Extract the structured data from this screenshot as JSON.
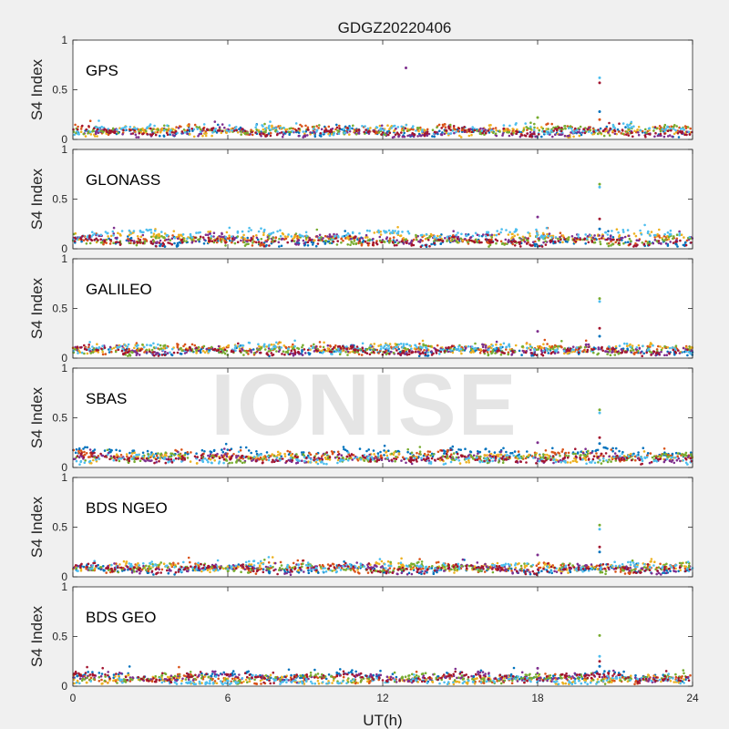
{
  "title": "GDGZ20220406",
  "watermark": "IONISE",
  "colors": {
    "palette": [
      "#0072BD",
      "#D95319",
      "#EDB120",
      "#7E2F8E",
      "#77AC30",
      "#4DBEEE",
      "#A2142F"
    ],
    "axes_bg": "#ffffff",
    "figure_bg": "#f0f0f0"
  },
  "chart_data": {
    "type": "scatter",
    "xlabel": "UT(h)",
    "xlim": [
      0,
      24
    ],
    "xticks": [
      0,
      6,
      12,
      18,
      24
    ],
    "grid": false,
    "panels": [
      {
        "label": "GPS",
        "ylabel": "S4 Index",
        "ylim": [
          0,
          1
        ],
        "yticks": [
          0,
          0.5,
          1
        ],
        "baseline": 0.08,
        "series_baselines": [
          0.07,
          0.1,
          0.08,
          0.06,
          0.09,
          0.1,
          0.08
        ],
        "spikes": [
          {
            "x": 12.9,
            "y": 0.72
          },
          {
            "x": 18.0,
            "y": 0.22
          },
          {
            "x": 20.4,
            "y": 0.62
          },
          {
            "x": 20.4,
            "y": 0.57
          },
          {
            "x": 20.4,
            "y": 0.28
          },
          {
            "x": 20.4,
            "y": 0.2
          }
        ]
      },
      {
        "label": "GLONASS",
        "ylabel": "S4 Index",
        "ylim": [
          0,
          1
        ],
        "yticks": [
          0,
          0.5,
          1
        ],
        "baseline": 0.08,
        "series_baselines": [
          0.07,
          0.09,
          0.12,
          0.1,
          0.08,
          0.15,
          0.07
        ],
        "spikes": [
          {
            "x": 18.0,
            "y": 0.32
          },
          {
            "x": 20.4,
            "y": 0.65
          },
          {
            "x": 20.4,
            "y": 0.62
          },
          {
            "x": 20.4,
            "y": 0.3
          },
          {
            "x": 20.4,
            "y": 0.2
          }
        ]
      },
      {
        "label": "GALILEO",
        "ylabel": "S4 Index",
        "ylim": [
          0,
          1
        ],
        "yticks": [
          0,
          0.5,
          1
        ],
        "baseline": 0.08,
        "series_baselines": [
          0.07,
          0.09,
          0.1,
          0.08,
          0.08,
          0.1,
          0.07
        ],
        "spikes": [
          {
            "x": 18.0,
            "y": 0.27
          },
          {
            "x": 20.4,
            "y": 0.6
          },
          {
            "x": 20.4,
            "y": 0.57
          },
          {
            "x": 20.4,
            "y": 0.3
          },
          {
            "x": 20.4,
            "y": 0.22
          }
        ]
      },
      {
        "label": "SBAS",
        "ylabel": "S4 Index",
        "ylim": [
          0,
          1
        ],
        "yticks": [
          0,
          0.5,
          1
        ],
        "baseline": 0.12,
        "series_baselines": [
          0.15,
          0.12,
          0.1,
          0.09,
          0.1,
          0.08,
          0.09
        ],
        "spikes": [
          {
            "x": 18.0,
            "y": 0.25
          },
          {
            "x": 20.4,
            "y": 0.58
          },
          {
            "x": 20.4,
            "y": 0.55
          },
          {
            "x": 20.4,
            "y": 0.3
          },
          {
            "x": 20.4,
            "y": 0.24
          }
        ]
      },
      {
        "label": "BDS NGEO",
        "ylabel": "S4 Index",
        "ylim": [
          0,
          1
        ],
        "yticks": [
          0,
          0.5,
          1
        ],
        "baseline": 0.08,
        "series_baselines": [
          0.07,
          0.09,
          0.1,
          0.08,
          0.09,
          0.1,
          0.08
        ],
        "spikes": [
          {
            "x": 18.0,
            "y": 0.22
          },
          {
            "x": 20.4,
            "y": 0.52
          },
          {
            "x": 20.4,
            "y": 0.48
          },
          {
            "x": 20.4,
            "y": 0.3
          },
          {
            "x": 20.4,
            "y": 0.25
          }
        ]
      },
      {
        "label": "BDS GEO",
        "ylabel": "S4 Index",
        "ylim": [
          0,
          1
        ],
        "yticks": [
          0,
          0.5,
          1
        ],
        "baseline": 0.08,
        "series_baselines": [
          0.1,
          0.07,
          0.06,
          0.09,
          0.08,
          0.05,
          0.09
        ],
        "spikes": [
          {
            "x": 18.0,
            "y": 0.18
          },
          {
            "x": 20.4,
            "y": 0.51
          },
          {
            "x": 20.4,
            "y": 0.3
          },
          {
            "x": 20.4,
            "y": 0.25
          },
          {
            "x": 20.4,
            "y": 0.2
          }
        ]
      }
    ]
  }
}
